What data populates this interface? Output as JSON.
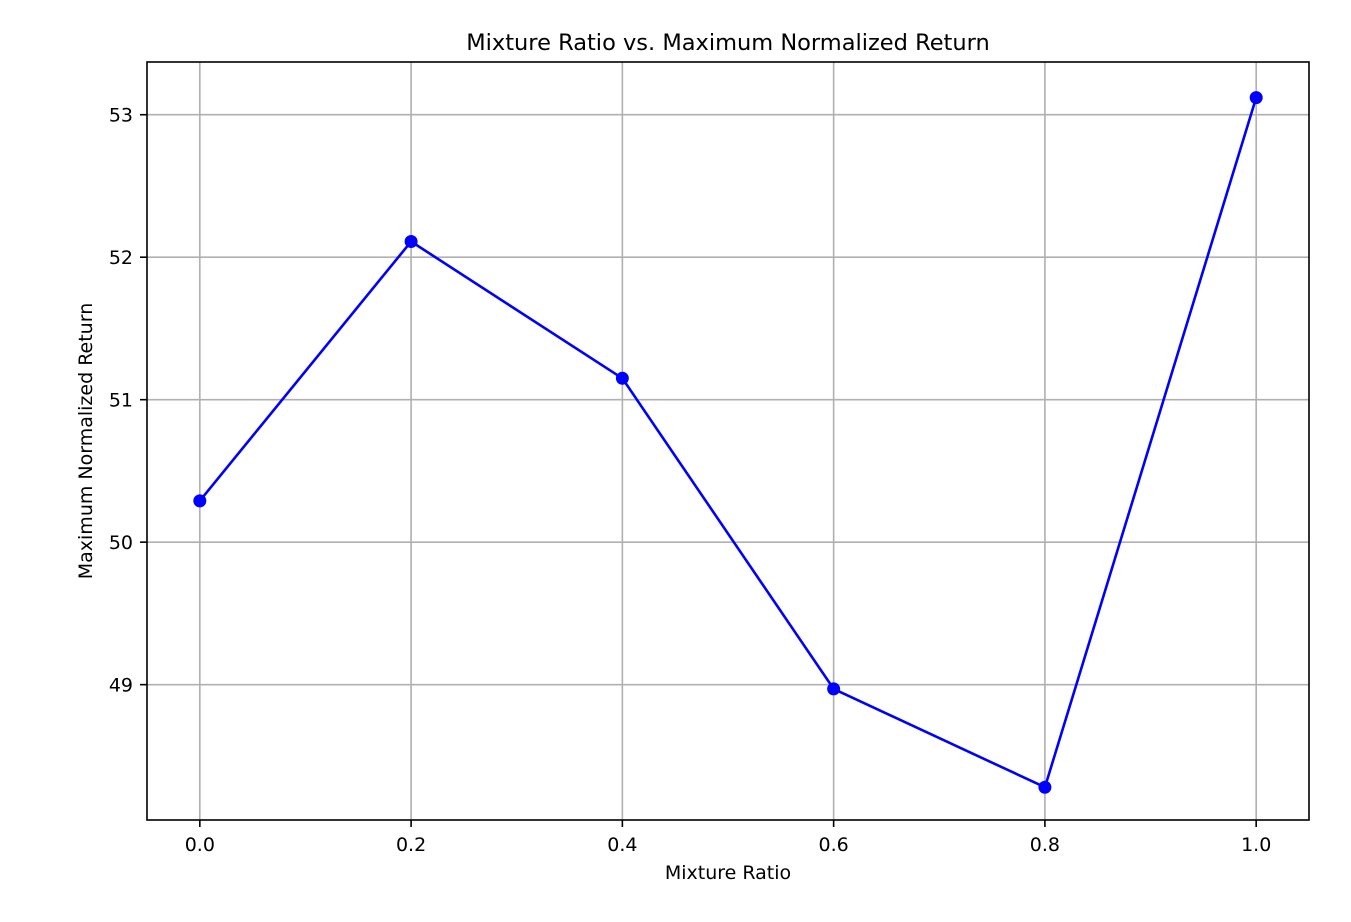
{
  "chart_data": {
    "type": "line",
    "title": "Mixture Ratio vs. Maximum Normalized Return",
    "xlabel": "Mixture Ratio",
    "ylabel": "Maximum Normalized Return",
    "x": [
      0.0,
      0.2,
      0.4,
      0.6,
      0.8,
      1.0
    ],
    "series": [
      {
        "values": [
          50.29,
          52.11,
          51.15,
          48.97,
          48.28,
          53.12
        ],
        "color": "#0000ff",
        "marker": "circle"
      }
    ],
    "xlim": [
      -0.05,
      1.05
    ],
    "ylim": [
      48.05,
      53.37
    ],
    "x_ticks": [
      0.0,
      0.2,
      0.4,
      0.6,
      0.8,
      1.0
    ],
    "x_tick_labels": [
      "0.0",
      "0.2",
      "0.4",
      "0.6",
      "0.8",
      "1.0"
    ],
    "y_ticks": [
      49,
      50,
      51,
      52,
      53
    ],
    "y_tick_labels": [
      "49",
      "50",
      "51",
      "52",
      "53"
    ],
    "grid": true,
    "legend": "none"
  }
}
